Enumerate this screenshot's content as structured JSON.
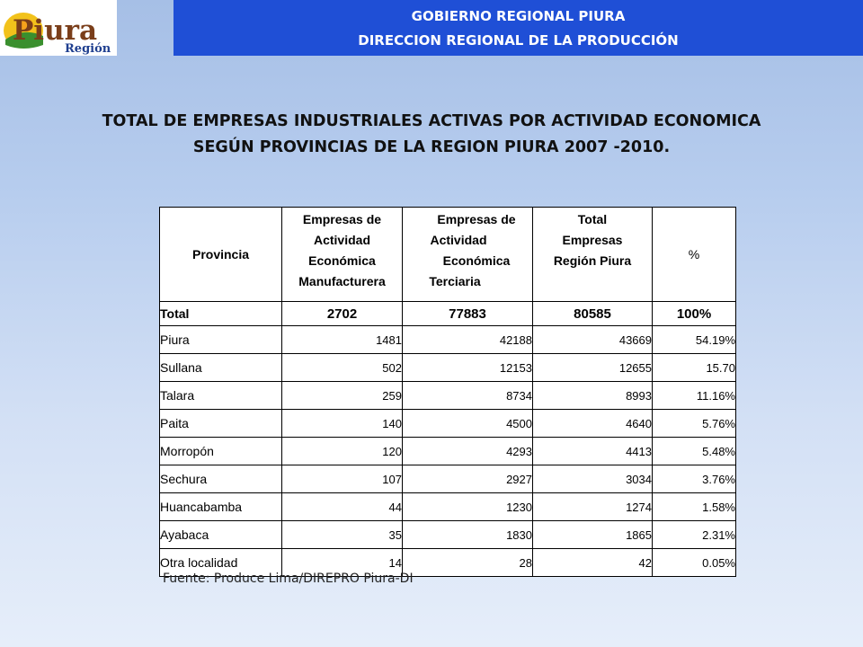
{
  "logo": {
    "text_top": "Piura",
    "text_bottom": "Región"
  },
  "header": {
    "line1": "GOBIERNO REGIONAL PIURA",
    "line2": "DIRECCION REGIONAL DE LA PRODUCCIÓN",
    "band_color": "#1f4fd6"
  },
  "title": {
    "line1": "TOTAL DE EMPRESAS INDUSTRIALES ACTIVAS POR ACTIVIDAD ECONOMICA",
    "line2": "SEGÚN PROVINCIAS DE LA REGION PIURA  2007 -2010."
  },
  "table": {
    "headers": {
      "provincia": "Provincia",
      "manuf": [
        "Empresas de",
        "Actividad",
        "Económica",
        "Manufacturera"
      ],
      "terc": [
        "Empresas de",
        "Actividad",
        "Económica",
        "Terciaria"
      ],
      "total": [
        "Total",
        "Empresas",
        "Región Piura"
      ],
      "pct": "%"
    },
    "total_row": {
      "provincia": "Total",
      "manuf": "2702",
      "terc": "77883",
      "total": "80585",
      "pct": "100%"
    },
    "rows": [
      {
        "provincia": "Piura",
        "manuf": "1481",
        "terc": "42188",
        "total": "43669",
        "pct": "54.19%"
      },
      {
        "provincia": "Sullana",
        "manuf": "502",
        "terc": "12153",
        "total": "12655",
        "pct": "15.70"
      },
      {
        "provincia": "Talara",
        "manuf": "259",
        "terc": "8734",
        "total": "8993",
        "pct": "11.16%"
      },
      {
        "provincia": "Paita",
        "manuf": "140",
        "terc": "4500",
        "total": "4640",
        "pct": "5.76%"
      },
      {
        "provincia": "Morropón",
        "manuf": "120",
        "terc": "4293",
        "total": "4413",
        "pct": "5.48%"
      },
      {
        "provincia": "Sechura",
        "manuf": "107",
        "terc": "2927",
        "total": "3034",
        "pct": "3.76%"
      },
      {
        "provincia": "Huancabamba",
        "manuf": "44",
        "terc": "1230",
        "total": "1274",
        "pct": "1.58%"
      },
      {
        "provincia": "Ayabaca",
        "manuf": "35",
        "terc": "1830",
        "total": "1865",
        "pct": "2.31%"
      },
      {
        "provincia": "Otra localidad",
        "manuf": "14",
        "terc": "28",
        "total": "42",
        "pct": "0.05%"
      }
    ]
  },
  "source": "Fuente: Produce Lima/DIREPRO Piura-DI"
}
